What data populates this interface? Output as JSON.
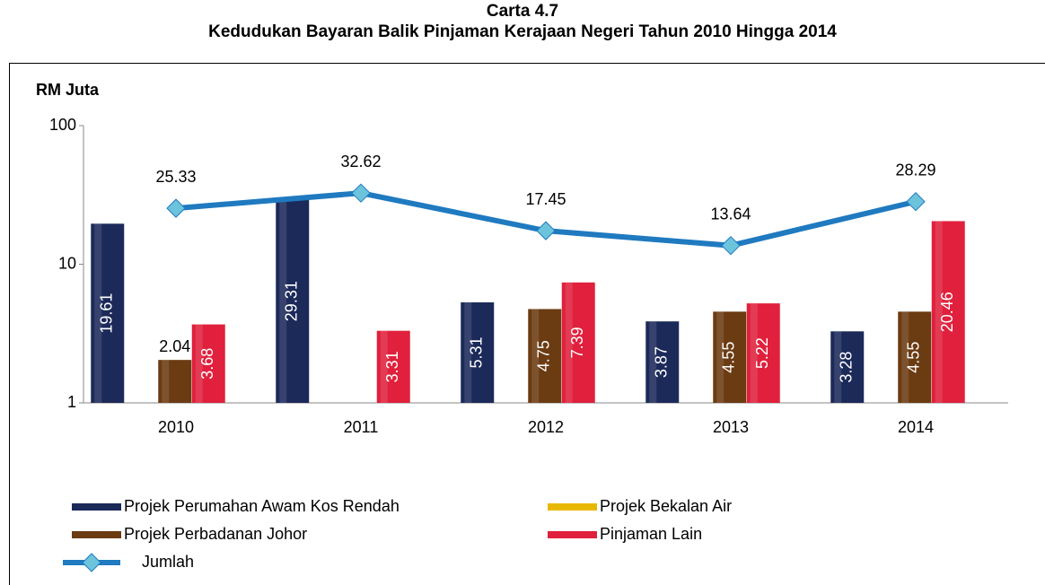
{
  "chart_data": {
    "type": "bar",
    "title": "Carta 4.7",
    "subtitle": "Kedudukan Bayaran Balik Pinjaman Kerajaan Negeri Tahun 2010 Hingga 2014",
    "y_axis_label": "RM  Juta",
    "categories": [
      "2010",
      "2011",
      "2012",
      "2013",
      "2014"
    ],
    "series": [
      {
        "name": "Projek Perumahan Awam Kos Rendah",
        "color": "#1c2a5a",
        "values": [
          19.61,
          29.31,
          5.31,
          3.87,
          3.28
        ]
      },
      {
        "name": "Projek Bekalan Air",
        "color": "#e8b800",
        "values": [
          null,
          null,
          null,
          null,
          null
        ]
      },
      {
        "name": "Projek Perbadanan Johor",
        "color": "#6b3b12",
        "values": [
          2.04,
          null,
          4.75,
          4.55,
          4.55
        ]
      },
      {
        "name": "Pinjaman Lain",
        "color": "#e0203c",
        "values": [
          3.68,
          3.31,
          7.39,
          5.22,
          20.46
        ]
      },
      {
        "name": "Jumlah",
        "type": "line",
        "color": "#1f7ac0",
        "marker_color": "#6cc4dc",
        "values": [
          25.33,
          32.62,
          17.45,
          13.64,
          28.29
        ]
      }
    ],
    "ylim": [
      1,
      100
    ],
    "yticks": [
      1,
      10,
      100
    ],
    "log_scale": true,
    "grid": false,
    "legend": "bottom"
  }
}
